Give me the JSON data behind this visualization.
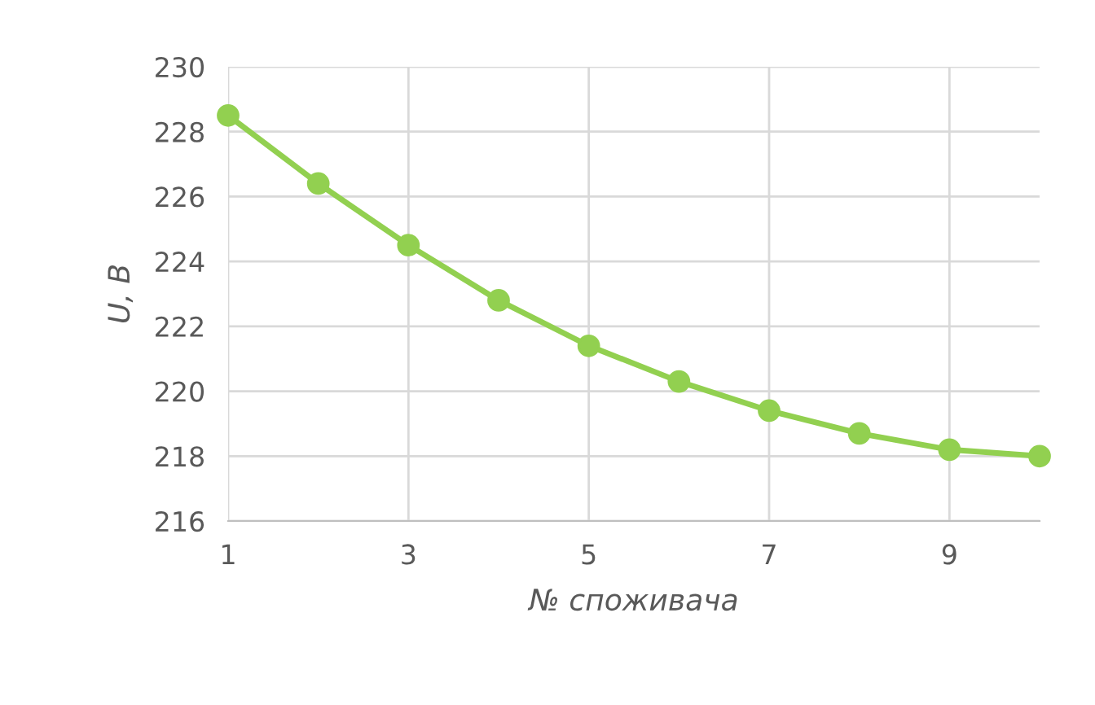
{
  "chart_data": {
    "type": "line",
    "xlabel": "№ споживача",
    "ylabel": "U, B",
    "x": [
      1,
      2,
      3,
      4,
      5,
      6,
      7,
      8,
      9,
      10
    ],
    "series": [
      {
        "color": "#92d050",
        "values": [
          228.5,
          226.4,
          224.5,
          222.8,
          221.4,
          220.3,
          219.4,
          218.7,
          218.2,
          218.0
        ]
      }
    ],
    "xlim": [
      1,
      10
    ],
    "xticks": [
      1,
      3,
      5,
      7,
      9
    ],
    "ylim": [
      216,
      230
    ],
    "yticks": [
      216,
      218,
      220,
      222,
      224,
      226,
      228,
      230
    ],
    "grid": true,
    "marker": "circle",
    "line_style": "solid"
  }
}
